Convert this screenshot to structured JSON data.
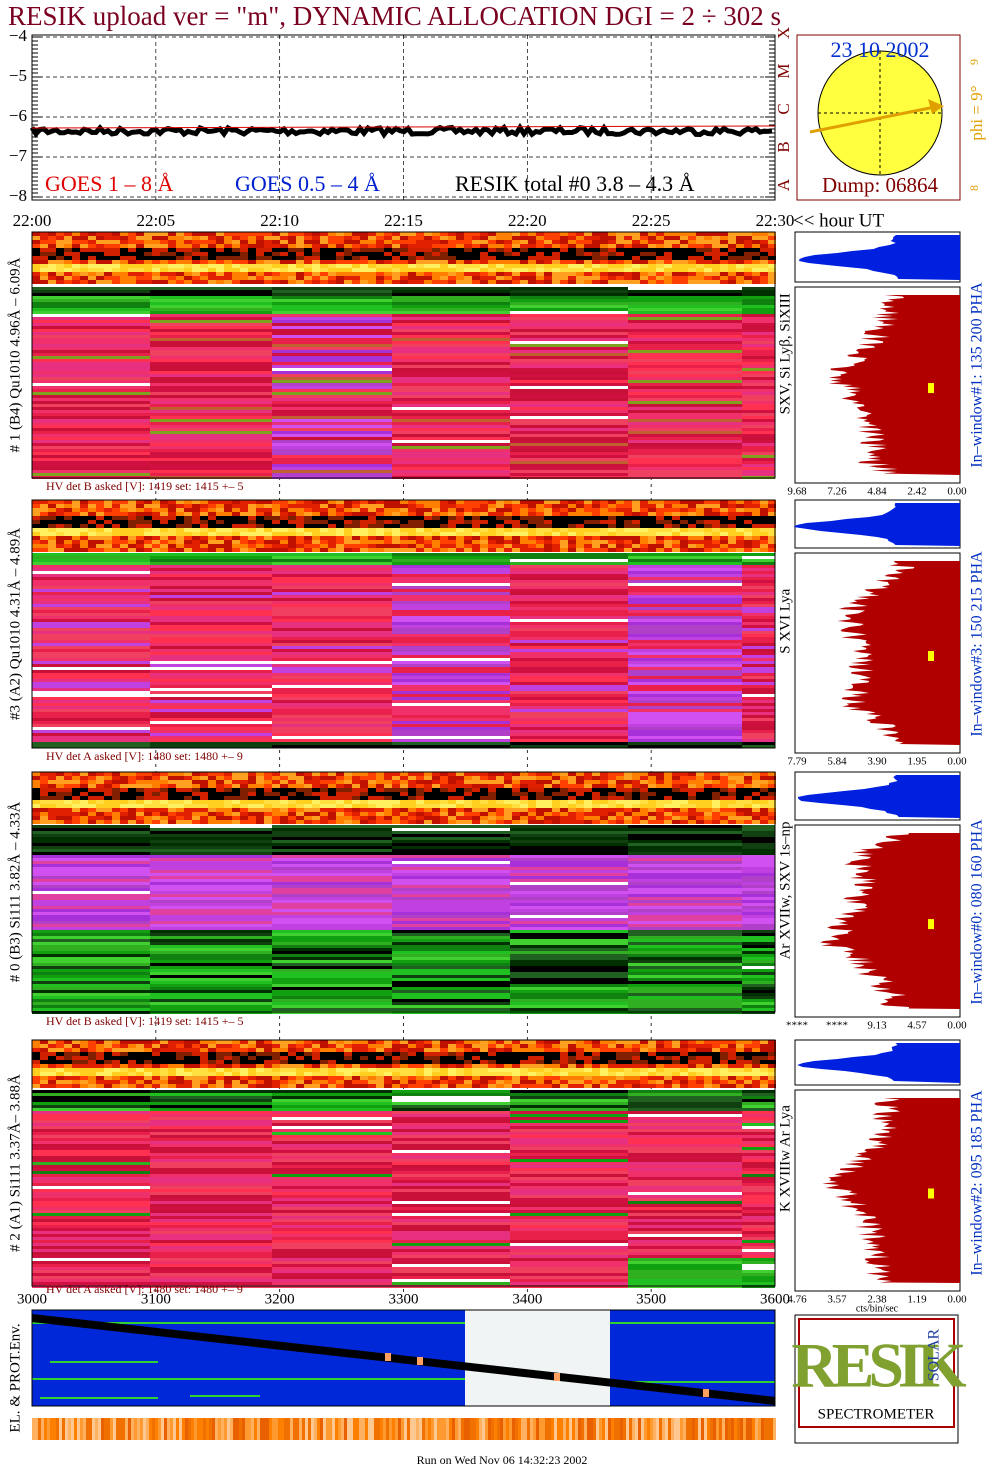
{
  "header": {
    "title": "RESIK upload ver = \"m\", DYNAMIC ALLOCATION  DGI =   2 ÷ 302 s"
  },
  "goes_plot": {
    "yticks": [
      "−4",
      "−5",
      "−6",
      "−7",
      "−8"
    ],
    "xticks": [
      "22:00",
      "22:05",
      "22:10",
      "22:15",
      "22:20",
      "22:25",
      "22:30"
    ],
    "x_unit": "<< hour UT",
    "legend": [
      "GOES 1 – 8 Å",
      "GOES 0.5 – 4 Å",
      "RESIK total #0  3.8 – 4.3 Å"
    ]
  },
  "date_box": {
    "date": "23 10 2002",
    "dump": "Dump: 06864",
    "classes": [
      "A",
      "B",
      "C",
      "M",
      "X"
    ],
    "phi": "phi =  9°",
    "phi_marks": [
      "9",
      "8"
    ]
  },
  "panels": [
    {
      "label": "# 1 (B4) Qu1010 4.96Å – 6.09Å",
      "hv": "HV det B asked [V]:  1419 set:  1415 +–   5",
      "lines": "SXV, Si Lyβ, SiXIII",
      "window": "In–window#1:  135 200 PHA",
      "pha_ticks": [
        "9.68",
        "7.26",
        "4.84",
        "2.42",
        "0.00"
      ]
    },
    {
      "label": "#3 (A2) Qu1010  4.31Å – 4.89Å",
      "hv": "HV det A asked [V]:  1480 set:  1480 +–    9",
      "lines": "S XVI Lya",
      "window": "In–window#3:  150 215 PHA",
      "pha_ticks": [
        "7.79",
        "5.84",
        "3.90",
        "1.95",
        "0.00"
      ]
    },
    {
      "label": "# 0 (B3) Si111  3.82Å – 4.33Å",
      "hv": "HV det B asked [V]:  1419 set:  1415 +–   5",
      "lines": "Ar XVIIw,  SXV 1s–np",
      "window": "In–window#0:  080 160 PHA",
      "pha_ticks": [
        "****",
        "****",
        "9.13",
        "4.57",
        "0.00"
      ]
    },
    {
      "label": "# 2 (A1) Si111  3.37Å– 3.88Å",
      "hv": "HV det A asked [V]:  1480 set:  1480 +–    9",
      "lines": "K XVIIIw  Ar Lya",
      "window": "In–window#2:  095 185 PHA",
      "pha_ticks": [
        "4.76",
        "3.57",
        "2.38",
        "1.19",
        "0.00"
      ]
    }
  ],
  "pha_unit": "cts/bin/sec",
  "env_plot": {
    "label": "EL. & PROT.Env.",
    "xticks": [
      "3000",
      "3100",
      "3200",
      "3300",
      "3400",
      "3500",
      "3600"
    ]
  },
  "logo": {
    "name": "RESIK",
    "solar": "SOLAR",
    "subtitle": "SPECTROMETER"
  },
  "footer": "Run on Wed Nov 06 14:32:23 2002"
}
